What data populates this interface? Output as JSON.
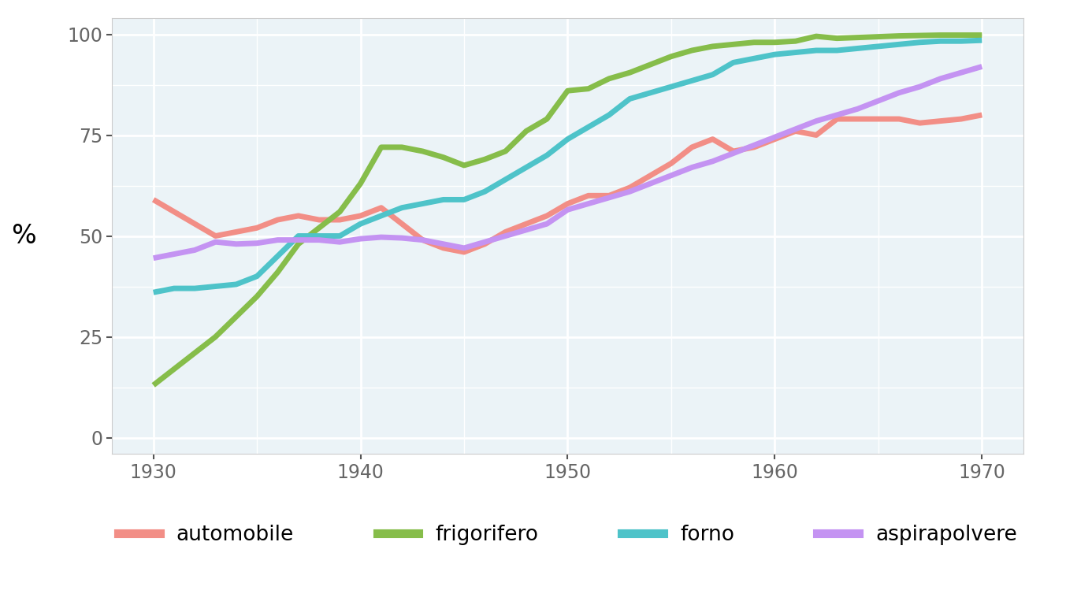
{
  "chart_data": {
    "type": "line",
    "y_label": "%",
    "x": [
      1930,
      1931,
      1932,
      1933,
      1934,
      1935,
      1936,
      1937,
      1938,
      1939,
      1940,
      1941,
      1942,
      1943,
      1944,
      1945,
      1946,
      1947,
      1948,
      1949,
      1950,
      1951,
      1952,
      1953,
      1954,
      1955,
      1956,
      1957,
      1958,
      1959,
      1960,
      1961,
      1962,
      1963,
      1964,
      1965,
      1966,
      1967,
      1968,
      1969,
      1970
    ],
    "series": [
      {
        "name": "automobile",
        "color": "#f28e86",
        "values": [
          59,
          56,
          53,
          50,
          51,
          52,
          54,
          55,
          54,
          54,
          55,
          57,
          53,
          49,
          47,
          46,
          48,
          51,
          53,
          55,
          58,
          60,
          60,
          62,
          65,
          68,
          72,
          74,
          71,
          72,
          74,
          76,
          75,
          79,
          79,
          79,
          79,
          78,
          78.5,
          79,
          80
        ]
      },
      {
        "name": "frigorifero",
        "color": "#86bd4a",
        "values": [
          13,
          17,
          21,
          25,
          30,
          35,
          41,
          48,
          52,
          56,
          63,
          72,
          72,
          71,
          69.5,
          67.5,
          69,
          71,
          76,
          79,
          86,
          86.5,
          89,
          90.5,
          92.5,
          94.5,
          96,
          97,
          97.5,
          98,
          98,
          98.3,
          99.5,
          99,
          99.2,
          99.4,
          99.6,
          99.7,
          99.8,
          99.8,
          99.8
        ]
      },
      {
        "name": "forno",
        "color": "#4ec3c9",
        "values": [
          36,
          37,
          37,
          37.5,
          38,
          40,
          45,
          50,
          50,
          50,
          53,
          55,
          57,
          58,
          59,
          59,
          61,
          64,
          67,
          70,
          74,
          77,
          80,
          84,
          85.5,
          87,
          88.5,
          90,
          93,
          94,
          95,
          95.5,
          96,
          96,
          96.5,
          97,
          97.5,
          98,
          98.3,
          98.3,
          98.5
        ]
      },
      {
        "name": "aspirapolvere",
        "color": "#c493f2",
        "values": [
          44.5,
          45.5,
          46.5,
          48.5,
          48,
          48.2,
          49,
          49,
          49,
          48.5,
          49.3,
          49.7,
          49.5,
          49,
          48,
          47,
          48.5,
          50,
          51.5,
          53,
          56.5,
          58,
          59.5,
          61,
          63,
          65,
          67,
          68.5,
          70.5,
          72.5,
          74.5,
          76.5,
          78.5,
          80,
          81.5,
          83.5,
          85.5,
          87,
          89,
          90.5,
          92
        ]
      }
    ],
    "xlim": [
      1928,
      1972
    ],
    "xticks": [
      1930,
      1940,
      1950,
      1960,
      1970
    ],
    "ylim": [
      -4,
      104
    ],
    "yticks": [
      0,
      25,
      50,
      75,
      100
    ],
    "grid": true,
    "legend": "bottom"
  }
}
